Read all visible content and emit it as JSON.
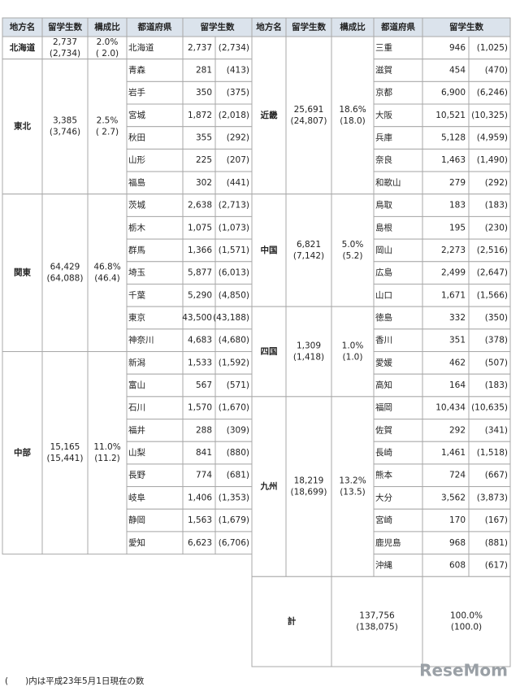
{
  "left_header": [
    "地方名",
    "留学生数",
    "構成比",
    "都道府県",
    "留学生数"
  ],
  "right_header": [
    "地方名",
    "留学生数",
    "構成比",
    "都道府県",
    "留学生数"
  ],
  "left_regions": [
    {
      "name": "北海道",
      "students": "2,737",
      "students_prev": "(2,734)",
      "share": "2.0%",
      "share_prev": "( 2.0)",
      "prefectures": [
        {
          "name": "北海道",
          "students": "2,737",
          "prev": "(2,734)"
        }
      ]
    },
    {
      "name": "東北",
      "students": "3,385",
      "students_prev": "(3,746)",
      "share": "2.5%",
      "share_prev": "( 2.7)",
      "prefectures": [
        {
          "name": "青森",
          "students": "281",
          "prev": "(413)"
        },
        {
          "name": "岩手",
          "students": "350",
          "prev": "(375)"
        },
        {
          "name": "宮城",
          "students": "1,872",
          "prev": "(2,018)"
        },
        {
          "name": "秋田",
          "students": "355",
          "prev": "(292)"
        },
        {
          "name": "山形",
          "students": "225",
          "prev": "(207)"
        },
        {
          "name": "福島",
          "students": "302",
          "prev": "(441)"
        }
      ]
    },
    {
      "name": "関東",
      "students": "64,429",
      "students_prev": "(64,088)",
      "share": "46.8%",
      "share_prev": "(46.4)",
      "prefectures": [
        {
          "name": "茨城",
          "students": "2,638",
          "prev": "(2,713)"
        },
        {
          "name": "栃木",
          "students": "1,075",
          "prev": "(1,073)"
        },
        {
          "name": "群馬",
          "students": "1,366",
          "prev": "(1,571)"
        },
        {
          "name": "埼玉",
          "students": "5,877",
          "prev": "(6,013)"
        },
        {
          "name": "千葉",
          "students": "5,290",
          "prev": "(4,850)"
        },
        {
          "name": "東京",
          "students": "43,500",
          "prev": "(43,188)"
        },
        {
          "name": "神奈川",
          "students": "4,683",
          "prev": "(4,680)"
        }
      ]
    },
    {
      "name": "中部",
      "students": "15,165",
      "students_prev": "(15,441)",
      "share": "11.0%",
      "share_prev": "(11.2)",
      "prefectures": [
        {
          "name": "新潟",
          "students": "1,533",
          "prev": "(1,592)"
        },
        {
          "name": "富山",
          "students": "567",
          "prev": "(571)"
        },
        {
          "name": "石川",
          "students": "1,570",
          "prev": "(1,670)"
        },
        {
          "name": "福井",
          "students": "288",
          "prev": "(309)"
        },
        {
          "name": "山梨",
          "students": "841",
          "prev": "(880)"
        },
        {
          "name": "長野",
          "students": "774",
          "prev": "(681)"
        },
        {
          "name": "岐阜",
          "students": "1,406",
          "prev": "(1,353)"
        },
        {
          "name": "静岡",
          "students": "1,563",
          "prev": "(1,679)"
        },
        {
          "name": "愛知",
          "students": "6,623",
          "prev": "(6,706)"
        }
      ]
    }
  ],
  "right_regions": [
    {
      "name": "近畿",
      "students": "25,691",
      "students_prev": "(24,807)",
      "share": "18.6%",
      "share_prev": "(18.0)",
      "prefectures": [
        {
          "name": "三重",
          "students": "946",
          "prev": "(1,025)"
        },
        {
          "name": "滋賀",
          "students": "454",
          "prev": "(470)"
        },
        {
          "name": "京都",
          "students": "6,900",
          "prev": "(6,246)"
        },
        {
          "name": "大阪",
          "students": "10,521",
          "prev": "(10,325)"
        },
        {
          "name": "兵庫",
          "students": "5,128",
          "prev": "(4,959)"
        },
        {
          "name": "奈良",
          "students": "1,463",
          "prev": "(1,490)"
        },
        {
          "name": "和歌山",
          "students": "279",
          "prev": "(292)"
        }
      ]
    },
    {
      "name": "中国",
      "students": "6,821",
      "students_prev": "(7,142)",
      "share": "5.0%",
      "share_prev": "(5.2)",
      "prefectures": [
        {
          "name": "鳥取",
          "students": "183",
          "prev": "(183)"
        },
        {
          "name": "島根",
          "students": "195",
          "prev": "(230)"
        },
        {
          "name": "岡山",
          "students": "2,273",
          "prev": "(2,516)"
        },
        {
          "name": "広島",
          "students": "2,499",
          "prev": "(2,647)"
        },
        {
          "name": "山口",
          "students": "1,671",
          "prev": "(1,566)"
        }
      ]
    },
    {
      "name": "四国",
      "students": "1,309",
      "students_prev": "(1,418)",
      "share": "1.0%",
      "share_prev": "(1.0)",
      "prefectures": [
        {
          "name": "徳島",
          "students": "332",
          "prev": "(350)"
        },
        {
          "name": "香川",
          "students": "351",
          "prev": "(378)"
        },
        {
          "name": "愛媛",
          "students": "462",
          "prev": "(507)"
        },
        {
          "name": "高知",
          "students": "164",
          "prev": "(183)"
        }
      ]
    },
    {
      "name": "九州",
      "students": "18,219",
      "students_prev": "(18,699)",
      "share": "13.2%",
      "share_prev": "(13.5)",
      "prefectures": [
        {
          "name": "福岡",
          "students": "10,434",
          "prev": "(10,635)"
        },
        {
          "name": "佐賀",
          "students": "292",
          "prev": "(341)"
        },
        {
          "name": "長崎",
          "students": "1,461",
          "prev": "(1,518)"
        },
        {
          "name": "熊本",
          "students": "724",
          "prev": "(667)"
        },
        {
          "name": "大分",
          "students": "3,562",
          "prev": "(3,873)"
        },
        {
          "name": "宮崎",
          "students": "170",
          "prev": "(167)"
        },
        {
          "name": "鹿児島",
          "students": "968",
          "prev": "(881)"
        },
        {
          "name": "沖縄",
          "students": "608",
          "prev": "(617)"
        }
      ]
    }
  ],
  "total": {
    "label": "計",
    "students": "137,756",
    "students_prev": "(138,075)",
    "share": "100.0%",
    "share_prev": "(100.0)"
  },
  "footnote": "(　　)内は平成23年5月1日現在の数",
  "watermark": "ReseMom"
}
